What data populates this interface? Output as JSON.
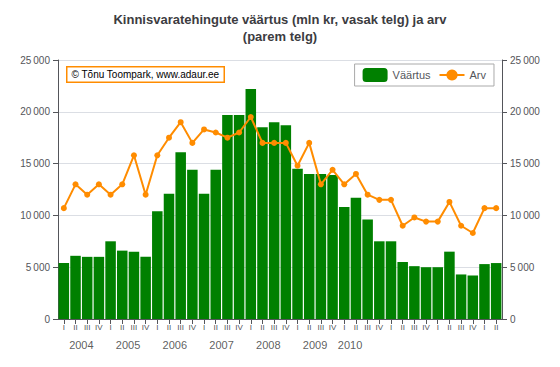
{
  "chart_data": {
    "type": "bar",
    "title": "Kinnisvaratehingute väärtus (mln kr, vasak telg) ja arv\n(parem telg)",
    "categories": [
      "I",
      "II",
      "III",
      "IV",
      "I",
      "II",
      "III",
      "IV",
      "I",
      "II",
      "III",
      "IV",
      "I",
      "II",
      "III",
      "IV",
      "I",
      "II",
      "III",
      "IV",
      "I",
      "II",
      "III",
      "IV",
      "I",
      "II",
      "III",
      "IV",
      "I",
      "II",
      "III",
      "IV",
      "I",
      "II",
      "III",
      "IV",
      "I",
      "II"
    ],
    "series": [
      {
        "name": "Väärtus",
        "type": "bar",
        "color": "#008000",
        "values": [
          5400,
          6100,
          6000,
          6000,
          7500,
          6600,
          6500,
          6000,
          10400,
          12100,
          16100,
          14400,
          12100,
          14400,
          19700,
          19700,
          22200,
          18500,
          19000,
          18700,
          14500,
          14000,
          14000,
          13900,
          10800,
          11700,
          9600,
          7500,
          7500,
          5500,
          5100,
          5000,
          5000,
          6500,
          4300,
          4200,
          5300,
          5400
        ]
      },
      {
        "name": "Arv",
        "type": "line",
        "axis": "y2",
        "color": "#FF8C00",
        "marker": "circle",
        "values": [
          10700,
          13000,
          12000,
          13000,
          12000,
          13000,
          15800,
          12000,
          15800,
          17500,
          19000,
          17000,
          18300,
          18000,
          17500,
          18000,
          19500,
          17000,
          17000,
          17000,
          14800,
          17000,
          13000,
          14400,
          13000,
          14000,
          12000,
          11500,
          11500,
          9000,
          9800,
          9400,
          9400,
          11300,
          9000,
          8300,
          10700,
          10700
        ]
      }
    ],
    "ylim": [
      0,
      25000
    ],
    "yticks": [
      0,
      {
        "value": 5000,
        "label": "5 000"
      },
      {
        "value": 10000,
        "label": "10 000"
      },
      {
        "value": 15000,
        "label": "15 000"
      },
      {
        "value": 20000,
        "label": "20 000"
      },
      {
        "value": 25000,
        "label": "25 000"
      }
    ],
    "y2lim": [
      0,
      25000
    ],
    "y2ticks": [
      0,
      {
        "value": 5000,
        "label": "5 000"
      },
      {
        "value": 10000,
        "label": "10 000"
      },
      {
        "value": 15000,
        "label": "15 000"
      },
      {
        "value": 20000,
        "label": "20 000"
      },
      {
        "value": 25000,
        "label": "25 000"
      }
    ],
    "grid": true,
    "legend": "upper right",
    "annotations": [
      {
        "text": "2004",
        "x": 2.5
      },
      {
        "text": "2005",
        "x": 6.5
      },
      {
        "text": "2006",
        "x": 10.5
      },
      {
        "text": "2007",
        "x": 14.5
      },
      {
        "text": "2008",
        "x": 18.5
      },
      {
        "text": "2009",
        "x": 22.5
      },
      {
        "text": "2010",
        "x": 25.5
      },
      {
        "text": "© Tõnu Toompark, www.adaur.ee"
      }
    ]
  }
}
